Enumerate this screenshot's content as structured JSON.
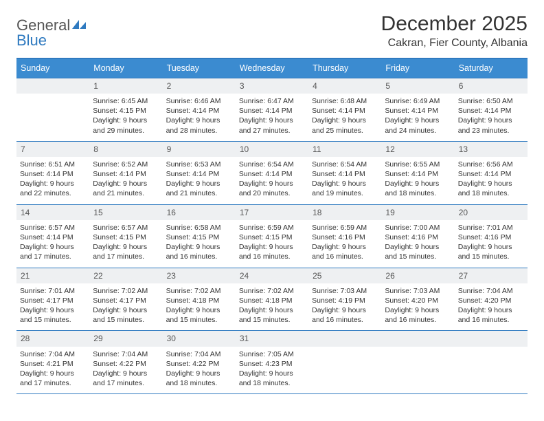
{
  "brand": {
    "name_gray": "General",
    "name_blue": "Blue"
  },
  "title": "December 2025",
  "location": "Cakran, Fier County, Albania",
  "colors": {
    "accent": "#3b8bd0",
    "rule": "#2f7ac0",
    "cell_header_bg": "#eef0f2",
    "text": "#333333",
    "background": "#ffffff"
  },
  "typography": {
    "title_fontsize": 30,
    "subtitle_fontsize": 16,
    "header_fontsize": 12.5,
    "daynum_fontsize": 12,
    "body_fontsize": 10.5
  },
  "weekdays": [
    "Sunday",
    "Monday",
    "Tuesday",
    "Wednesday",
    "Thursday",
    "Friday",
    "Saturday"
  ],
  "weeks": [
    [
      null,
      {
        "n": "1",
        "sr": "Sunrise: 6:45 AM",
        "ss": "Sunset: 4:15 PM",
        "dl": "Daylight: 9 hours and 29 minutes."
      },
      {
        "n": "2",
        "sr": "Sunrise: 6:46 AM",
        "ss": "Sunset: 4:14 PM",
        "dl": "Daylight: 9 hours and 28 minutes."
      },
      {
        "n": "3",
        "sr": "Sunrise: 6:47 AM",
        "ss": "Sunset: 4:14 PM",
        "dl": "Daylight: 9 hours and 27 minutes."
      },
      {
        "n": "4",
        "sr": "Sunrise: 6:48 AM",
        "ss": "Sunset: 4:14 PM",
        "dl": "Daylight: 9 hours and 25 minutes."
      },
      {
        "n": "5",
        "sr": "Sunrise: 6:49 AM",
        "ss": "Sunset: 4:14 PM",
        "dl": "Daylight: 9 hours and 24 minutes."
      },
      {
        "n": "6",
        "sr": "Sunrise: 6:50 AM",
        "ss": "Sunset: 4:14 PM",
        "dl": "Daylight: 9 hours and 23 minutes."
      }
    ],
    [
      {
        "n": "7",
        "sr": "Sunrise: 6:51 AM",
        "ss": "Sunset: 4:14 PM",
        "dl": "Daylight: 9 hours and 22 minutes."
      },
      {
        "n": "8",
        "sr": "Sunrise: 6:52 AM",
        "ss": "Sunset: 4:14 PM",
        "dl": "Daylight: 9 hours and 21 minutes."
      },
      {
        "n": "9",
        "sr": "Sunrise: 6:53 AM",
        "ss": "Sunset: 4:14 PM",
        "dl": "Daylight: 9 hours and 21 minutes."
      },
      {
        "n": "10",
        "sr": "Sunrise: 6:54 AM",
        "ss": "Sunset: 4:14 PM",
        "dl": "Daylight: 9 hours and 20 minutes."
      },
      {
        "n": "11",
        "sr": "Sunrise: 6:54 AM",
        "ss": "Sunset: 4:14 PM",
        "dl": "Daylight: 9 hours and 19 minutes."
      },
      {
        "n": "12",
        "sr": "Sunrise: 6:55 AM",
        "ss": "Sunset: 4:14 PM",
        "dl": "Daylight: 9 hours and 18 minutes."
      },
      {
        "n": "13",
        "sr": "Sunrise: 6:56 AM",
        "ss": "Sunset: 4:14 PM",
        "dl": "Daylight: 9 hours and 18 minutes."
      }
    ],
    [
      {
        "n": "14",
        "sr": "Sunrise: 6:57 AM",
        "ss": "Sunset: 4:14 PM",
        "dl": "Daylight: 9 hours and 17 minutes."
      },
      {
        "n": "15",
        "sr": "Sunrise: 6:57 AM",
        "ss": "Sunset: 4:15 PM",
        "dl": "Daylight: 9 hours and 17 minutes."
      },
      {
        "n": "16",
        "sr": "Sunrise: 6:58 AM",
        "ss": "Sunset: 4:15 PM",
        "dl": "Daylight: 9 hours and 16 minutes."
      },
      {
        "n": "17",
        "sr": "Sunrise: 6:59 AM",
        "ss": "Sunset: 4:15 PM",
        "dl": "Daylight: 9 hours and 16 minutes."
      },
      {
        "n": "18",
        "sr": "Sunrise: 6:59 AM",
        "ss": "Sunset: 4:16 PM",
        "dl": "Daylight: 9 hours and 16 minutes."
      },
      {
        "n": "19",
        "sr": "Sunrise: 7:00 AM",
        "ss": "Sunset: 4:16 PM",
        "dl": "Daylight: 9 hours and 15 minutes."
      },
      {
        "n": "20",
        "sr": "Sunrise: 7:01 AM",
        "ss": "Sunset: 4:16 PM",
        "dl": "Daylight: 9 hours and 15 minutes."
      }
    ],
    [
      {
        "n": "21",
        "sr": "Sunrise: 7:01 AM",
        "ss": "Sunset: 4:17 PM",
        "dl": "Daylight: 9 hours and 15 minutes."
      },
      {
        "n": "22",
        "sr": "Sunrise: 7:02 AM",
        "ss": "Sunset: 4:17 PM",
        "dl": "Daylight: 9 hours and 15 minutes."
      },
      {
        "n": "23",
        "sr": "Sunrise: 7:02 AM",
        "ss": "Sunset: 4:18 PM",
        "dl": "Daylight: 9 hours and 15 minutes."
      },
      {
        "n": "24",
        "sr": "Sunrise: 7:02 AM",
        "ss": "Sunset: 4:18 PM",
        "dl": "Daylight: 9 hours and 15 minutes."
      },
      {
        "n": "25",
        "sr": "Sunrise: 7:03 AM",
        "ss": "Sunset: 4:19 PM",
        "dl": "Daylight: 9 hours and 16 minutes."
      },
      {
        "n": "26",
        "sr": "Sunrise: 7:03 AM",
        "ss": "Sunset: 4:20 PM",
        "dl": "Daylight: 9 hours and 16 minutes."
      },
      {
        "n": "27",
        "sr": "Sunrise: 7:04 AM",
        "ss": "Sunset: 4:20 PM",
        "dl": "Daylight: 9 hours and 16 minutes."
      }
    ],
    [
      {
        "n": "28",
        "sr": "Sunrise: 7:04 AM",
        "ss": "Sunset: 4:21 PM",
        "dl": "Daylight: 9 hours and 17 minutes."
      },
      {
        "n": "29",
        "sr": "Sunrise: 7:04 AM",
        "ss": "Sunset: 4:22 PM",
        "dl": "Daylight: 9 hours and 17 minutes."
      },
      {
        "n": "30",
        "sr": "Sunrise: 7:04 AM",
        "ss": "Sunset: 4:22 PM",
        "dl": "Daylight: 9 hours and 18 minutes."
      },
      {
        "n": "31",
        "sr": "Sunrise: 7:05 AM",
        "ss": "Sunset: 4:23 PM",
        "dl": "Daylight: 9 hours and 18 minutes."
      },
      null,
      null,
      null
    ]
  ]
}
